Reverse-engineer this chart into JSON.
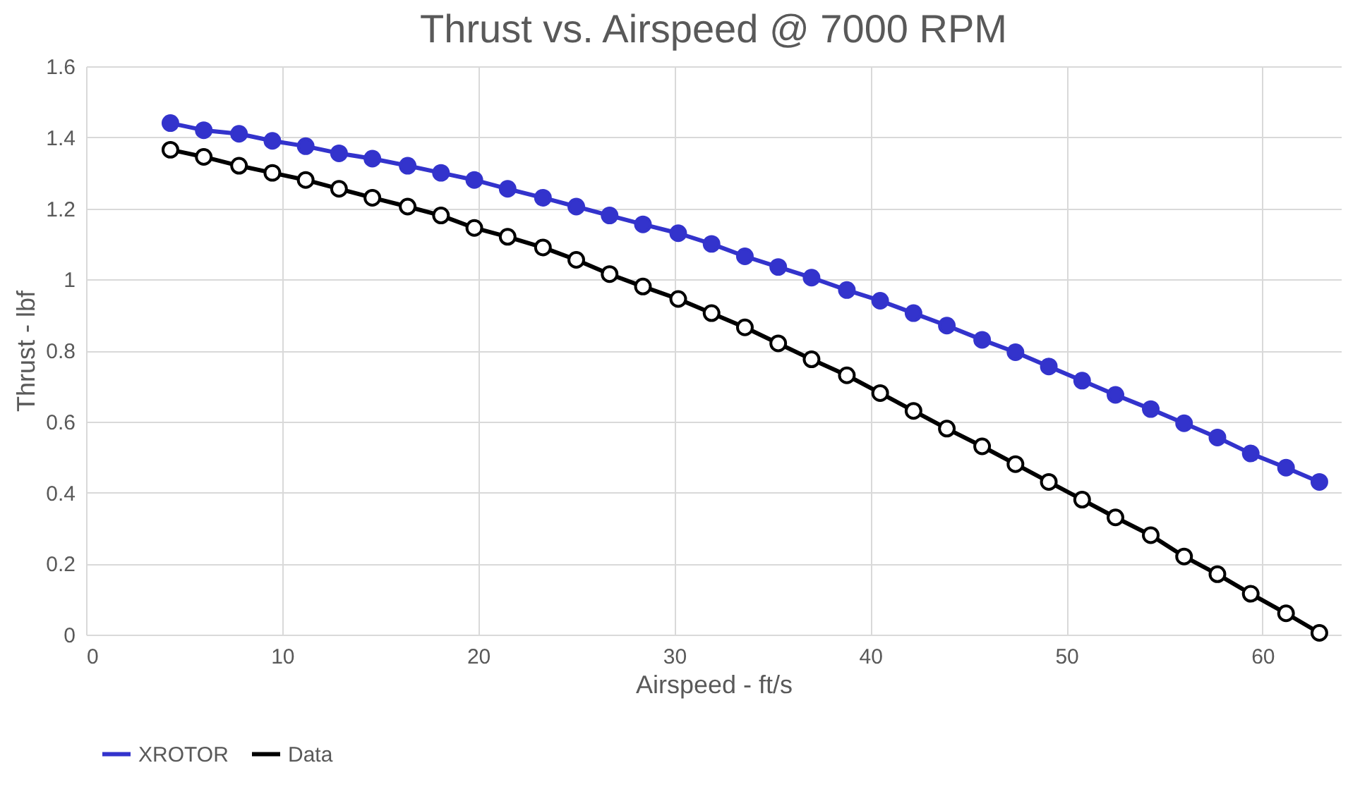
{
  "chart_data": {
    "type": "line",
    "title": "Thrust vs. Airspeed @ 7000 RPM",
    "xlabel": "Airspeed - ft/s",
    "ylabel": "Thrust - lbf",
    "x": [
      4.3,
      6.0,
      7.8,
      9.5,
      11.2,
      12.9,
      14.6,
      16.4,
      18.1,
      19.8,
      21.5,
      23.3,
      25.0,
      26.7,
      28.4,
      30.2,
      31.9,
      33.6,
      35.3,
      37.0,
      38.8,
      40.5,
      42.2,
      43.9,
      45.7,
      47.4,
      49.1,
      50.8,
      52.5,
      54.3,
      56.0,
      57.7,
      59.4,
      61.2,
      62.9
    ],
    "series": [
      {
        "name": "XROTOR",
        "color": "#3333cc",
        "values": [
          1.44,
          1.42,
          1.41,
          1.39,
          1.375,
          1.355,
          1.34,
          1.32,
          1.3,
          1.28,
          1.255,
          1.23,
          1.205,
          1.18,
          1.155,
          1.13,
          1.1,
          1.065,
          1.035,
          1.005,
          0.97,
          0.94,
          0.905,
          0.87,
          0.83,
          0.795,
          0.755,
          0.715,
          0.675,
          0.635,
          0.595,
          0.555,
          0.51,
          0.47,
          0.43
        ]
      },
      {
        "name": "Data",
        "color": "#000000",
        "values": [
          1.365,
          1.345,
          1.32,
          1.3,
          1.28,
          1.255,
          1.23,
          1.205,
          1.18,
          1.145,
          1.12,
          1.09,
          1.055,
          1.015,
          0.98,
          0.945,
          0.905,
          0.865,
          0.82,
          0.775,
          0.73,
          0.68,
          0.63,
          0.58,
          0.53,
          0.48,
          0.43,
          0.38,
          0.33,
          0.28,
          0.22,
          0.17,
          0.115,
          0.06,
          0.005
        ]
      }
    ],
    "xlim": [
      0,
      64
    ],
    "xticks": [
      0,
      10,
      20,
      30,
      40,
      50,
      60
    ],
    "ylim": [
      0,
      1.6
    ],
    "yticks": [
      0,
      0.2,
      0.4,
      0.6,
      0.8,
      1,
      1.2,
      1.4,
      1.6
    ],
    "grid": true,
    "legend": "bottom",
    "marker": "circle",
    "line_style": "solid"
  }
}
